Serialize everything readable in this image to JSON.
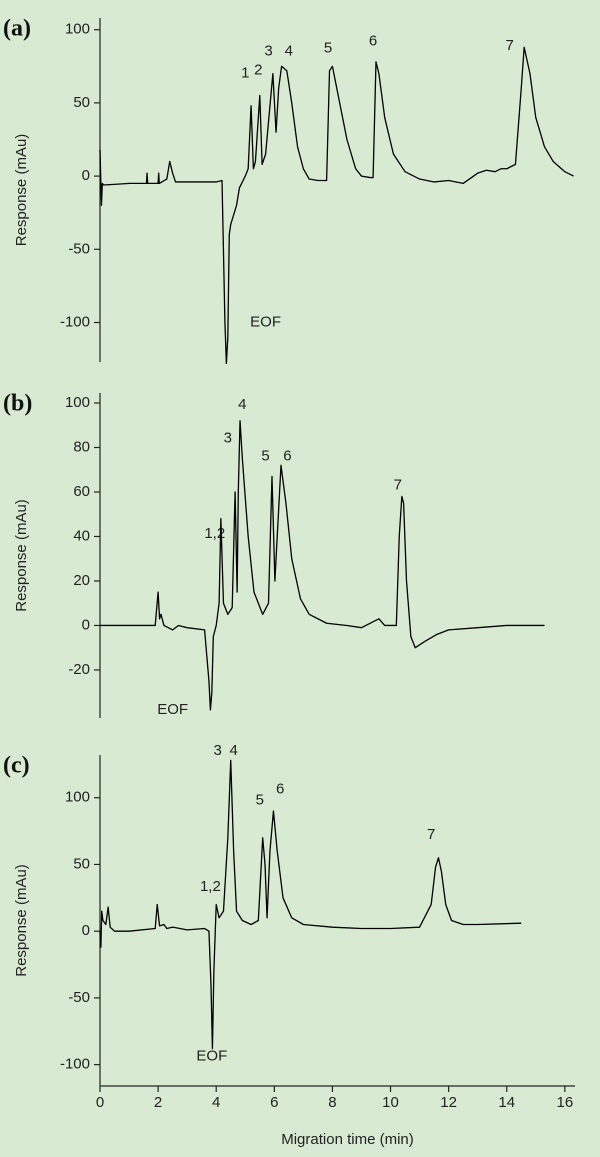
{
  "chart_data": [
    {
      "type": "line",
      "label": "(a)",
      "ylabel": "Response (mAu)",
      "annotations": [
        "1",
        "2",
        "3",
        "4",
        "5",
        "6",
        "7",
        "EOF"
      ],
      "xlim": [
        0,
        16.35
      ],
      "ylim": [
        -127,
        108
      ],
      "yticks": [
        -100,
        -50,
        0,
        50,
        100
      ],
      "color": "#000000",
      "x": [
        0,
        0.05,
        0.08,
        0.12,
        0.2,
        1.0,
        1.6,
        1.62,
        1.64,
        2.0,
        2.02,
        2.04,
        2.3,
        2.4,
        2.5,
        2.6,
        3.0,
        4.0,
        4.2,
        4.3,
        4.35,
        4.4,
        4.45,
        4.5,
        4.7,
        4.8,
        5.0,
        5.1,
        5.2,
        5.28,
        5.35,
        5.5,
        5.58,
        5.7,
        5.95,
        6.06,
        6.15,
        6.25,
        6.43,
        6.6,
        6.8,
        7.0,
        7.2,
        7.5,
        7.8,
        7.9,
        8.0,
        8.2,
        8.5,
        8.8,
        9.0,
        9.3,
        9.4,
        9.5,
        9.6,
        9.8,
        10.1,
        10.5,
        11,
        11.5,
        12,
        12.5,
        13,
        13.3,
        13.6,
        13.8,
        14.0,
        14.3,
        14.5,
        14.6,
        14.8,
        15.0,
        15.3,
        15.6,
        16.0,
        16.3
      ],
      "values": [
        18,
        -20,
        -5,
        -6,
        -6,
        -5,
        -5,
        2,
        -5,
        -5,
        2,
        -5,
        -2,
        10,
        2,
        -4,
        -4,
        -4,
        -3,
        -100,
        -128,
        -110,
        -40,
        -33,
        -20,
        -8,
        0,
        5,
        48,
        5,
        10,
        55,
        8,
        15,
        70,
        30,
        60,
        75,
        72,
        50,
        20,
        5,
        -2,
        -3,
        -3,
        72,
        75,
        55,
        25,
        5,
        0,
        -1,
        -1,
        78,
        70,
        40,
        15,
        3,
        -2,
        -4,
        -3,
        -5,
        2,
        4,
        3,
        5,
        5,
        8,
        60,
        88,
        70,
        40,
        20,
        10,
        3,
        0
      ]
    },
    {
      "type": "line",
      "label": "(b)",
      "ylabel": "Response (mAu)",
      "annotations": [
        "1,2",
        "3",
        "4",
        "5",
        "6",
        "7",
        "EOF"
      ],
      "xlim": [
        0,
        16.35
      ],
      "ylim": [
        -41.6,
        104.5
      ],
      "yticks": [
        -20,
        0,
        20,
        40,
        60,
        80,
        100
      ],
      "color": "#000000",
      "x": [
        0,
        1.0,
        1.9,
        2.0,
        2.05,
        2.1,
        2.2,
        2.5,
        2.7,
        3.0,
        3.6,
        3.75,
        3.8,
        3.85,
        3.9,
        4.0,
        4.1,
        4.16,
        4.25,
        4.4,
        4.55,
        4.65,
        4.72,
        4.76,
        4.82,
        4.9,
        5.1,
        5.3,
        5.6,
        5.8,
        5.92,
        6.02,
        6.1,
        6.23,
        6.4,
        6.6,
        6.9,
        7.2,
        7.8,
        8.5,
        9.0,
        9.6,
        9.8,
        10.2,
        10.3,
        10.39,
        10.45,
        10.55,
        10.7,
        10.85,
        11.2,
        11.6,
        12,
        13,
        14,
        15.3
      ],
      "values": [
        0,
        0,
        0,
        15,
        3,
        5,
        0,
        -2,
        0,
        -1,
        -2,
        -25,
        -38,
        -30,
        -5,
        0,
        10,
        48,
        10,
        5,
        8,
        60,
        15,
        60,
        92,
        75,
        40,
        15,
        5,
        10,
        67,
        20,
        40,
        72,
        55,
        30,
        12,
        5,
        1,
        0,
        -1,
        3,
        0,
        0,
        40,
        58,
        55,
        20,
        -5,
        -10,
        -7,
        -4,
        -2,
        -1,
        0,
        0
      ]
    },
    {
      "type": "line",
      "label": "(c)",
      "ylabel": "Response (mAu)",
      "xlabel": "Migration time (min)",
      "annotations": [
        "1,2",
        "3",
        "4",
        "5",
        "6",
        "7",
        "EOF"
      ],
      "xlim": [
        0,
        16.35
      ],
      "xticks": [
        0,
        2,
        4,
        6,
        8,
        10,
        12,
        14,
        16
      ],
      "ylim": [
        -116,
        132
      ],
      "yticks": [
        -100,
        -50,
        0,
        50,
        100
      ],
      "color": "#000000",
      "x": [
        0,
        0.03,
        0.06,
        0.1,
        0.2,
        0.28,
        0.35,
        0.5,
        1.0,
        1.9,
        1.97,
        2.05,
        2.2,
        2.3,
        2.5,
        3.0,
        3.6,
        3.75,
        3.82,
        3.87,
        3.92,
        4.0,
        4.1,
        4.25,
        4.4,
        4.5,
        4.6,
        4.7,
        4.9,
        5.2,
        5.45,
        5.6,
        5.68,
        5.75,
        5.85,
        5.97,
        6.1,
        6.3,
        6.6,
        7.0,
        8,
        9,
        10,
        11,
        11.4,
        11.55,
        11.65,
        11.75,
        11.9,
        12.1,
        12.5,
        13,
        14.5
      ],
      "values": [
        0,
        -12,
        15,
        8,
        5,
        18,
        3,
        0,
        0,
        2,
        20,
        4,
        5,
        2,
        3,
        1,
        2,
        0,
        -40,
        -88,
        -30,
        20,
        10,
        15,
        70,
        128,
        60,
        15,
        8,
        5,
        8,
        70,
        50,
        10,
        60,
        90,
        60,
        25,
        10,
        5,
        3,
        2,
        2,
        3,
        20,
        48,
        55,
        45,
        20,
        8,
        5,
        5,
        6
      ]
    }
  ]
}
